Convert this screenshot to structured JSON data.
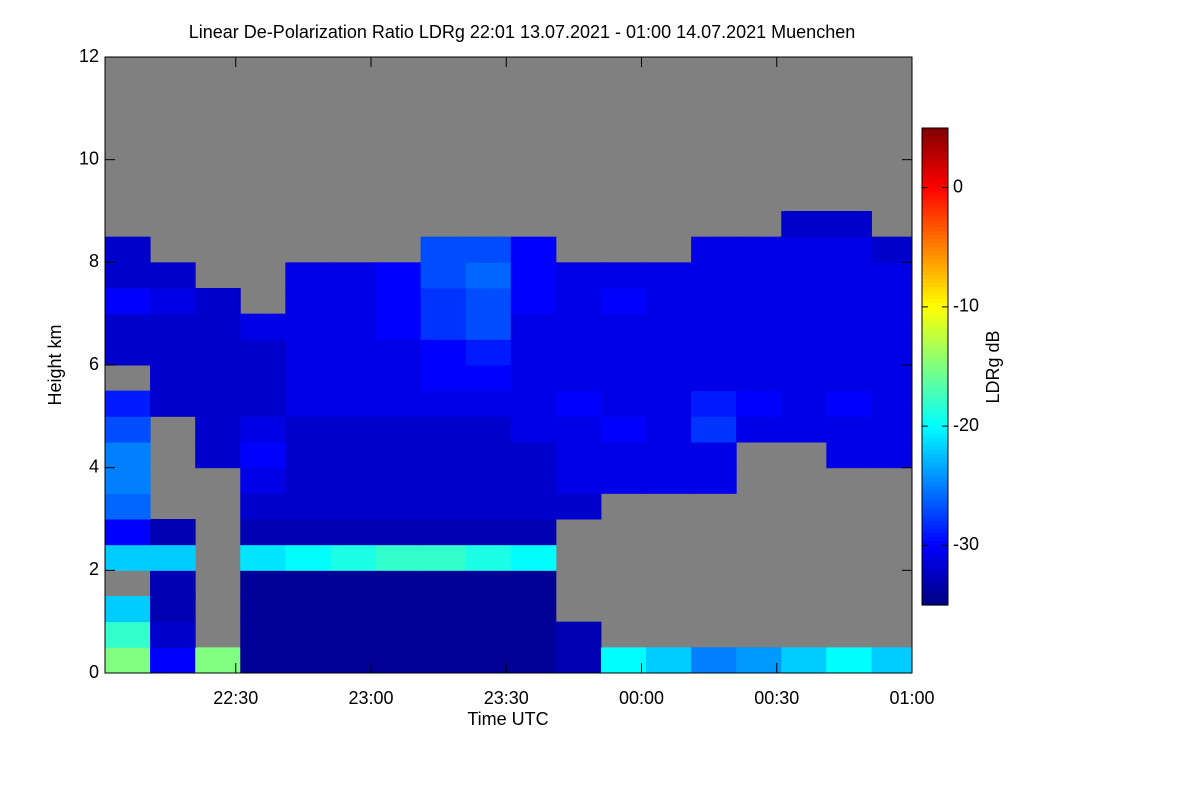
{
  "chart_data": {
    "type": "heatmap",
    "title": "Linear De-Polarization Ratio LDRg   22:01 13.07.2021 - 01:00 14.07.2021 Muenchen",
    "xlabel": "Time UTC",
    "ylabel": "Height km",
    "xlim": [
      1321,
      1500
    ],
    "ylim": [
      0,
      12
    ],
    "xticks": [
      {
        "value": 1350,
        "label": "22:30"
      },
      {
        "value": 1380,
        "label": "23:00"
      },
      {
        "value": 1410,
        "label": "23:30"
      },
      {
        "value": 1440,
        "label": "00:00"
      },
      {
        "value": 1470,
        "label": "00:30"
      },
      {
        "value": 1500,
        "label": "01:00"
      }
    ],
    "yticks": [
      0,
      2,
      4,
      6,
      8,
      10,
      12
    ],
    "x": [
      1326,
      1336,
      1346,
      1356,
      1366,
      1376,
      1386,
      1396,
      1406,
      1416,
      1426,
      1436,
      1446,
      1456,
      1466,
      1476,
      1486,
      1496
    ],
    "y": [
      0.25,
      0.75,
      1.25,
      1.75,
      2.25,
      2.75,
      3.25,
      3.75,
      4.25,
      4.75,
      5.25,
      5.75,
      6.25,
      6.75,
      7.25,
      7.75,
      8.25,
      8.75,
      9.25,
      9.75,
      10.25,
      10.75,
      11.25,
      11.75
    ],
    "values": [
      [
        -15,
        -30,
        -15,
        -34,
        -34,
        -34,
        -34,
        -34,
        -34,
        -34,
        -33,
        -20,
        -22,
        -25,
        -24,
        -22,
        -20,
        -22
      ],
      [
        -18,
        -32,
        null,
        -34,
        -34,
        -34,
        -34,
        -34,
        -34,
        -34,
        -33,
        null,
        null,
        null,
        null,
        null,
        null,
        null
      ],
      [
        -22,
        -33,
        null,
        -34,
        -34,
        -34,
        -34,
        -34,
        -34,
        -34,
        null,
        null,
        null,
        null,
        null,
        null,
        null,
        null
      ],
      [
        null,
        -33,
        null,
        -34,
        -34,
        -34,
        -34,
        -34,
        -34,
        -34,
        null,
        null,
        null,
        null,
        null,
        null,
        null,
        null
      ],
      [
        -22,
        -22,
        null,
        -21,
        -20,
        -19,
        -18,
        -18,
        -19,
        -20,
        null,
        null,
        null,
        null,
        null,
        null,
        null,
        null
      ],
      [
        -30,
        -33,
        null,
        -33,
        -33,
        -33,
        -33,
        -33,
        -33,
        -33,
        null,
        null,
        null,
        null,
        null,
        null,
        null,
        null
      ],
      [
        -26,
        null,
        null,
        -32,
        -32,
        -32,
        -32,
        -32,
        -32,
        -32,
        -32,
        null,
        null,
        null,
        null,
        null,
        null,
        null
      ],
      [
        -25,
        null,
        null,
        -31,
        -32,
        -32,
        -32,
        -32,
        -32,
        -32,
        -31,
        -31,
        -31,
        -31,
        null,
        null,
        null,
        null
      ],
      [
        -25,
        null,
        -32,
        -30,
        -32,
        -32,
        -32,
        -32,
        -32,
        -32,
        -31,
        -31,
        -31,
        -31,
        null,
        null,
        -31,
        -31
      ],
      [
        -27,
        null,
        -32,
        -31,
        -32,
        -32,
        -32,
        -32,
        -32,
        -31,
        -31,
        -30,
        -31,
        -28,
        -31,
        -31,
        -31,
        -31
      ],
      [
        -29,
        -32,
        -32,
        -32,
        -31,
        -31,
        -31,
        -31,
        -31,
        -31,
        -30,
        -31,
        -31,
        -29,
        -30,
        -31,
        -30,
        -31
      ],
      [
        null,
        -32,
        -32,
        -32,
        -31,
        -31,
        -31,
        -30,
        -30,
        -31,
        -31,
        -31,
        -31,
        -31,
        -31,
        -31,
        -31,
        -31
      ],
      [
        -32,
        -32,
        -32,
        -32,
        -31,
        -31,
        -31,
        -30,
        -29,
        -31,
        -31,
        -31,
        -31,
        -31,
        -31,
        -31,
        -31,
        -31
      ],
      [
        -32,
        -32,
        -32,
        -31,
        -31,
        -31,
        -30,
        -28,
        -27,
        -31,
        -31,
        -31,
        -31,
        -31,
        -31,
        -31,
        -31,
        -31
      ],
      [
        -30,
        -31,
        -32,
        null,
        -31,
        -31,
        -30,
        -28,
        -27,
        -30,
        -31,
        -30,
        -31,
        -31,
        -31,
        -31,
        -31,
        -31
      ],
      [
        -32,
        -32,
        null,
        null,
        -31,
        -31,
        -30,
        -27,
        -26,
        -30,
        -31,
        -31,
        -31,
        -31,
        -31,
        -31,
        -31,
        -31
      ],
      [
        -32,
        null,
        null,
        null,
        null,
        null,
        null,
        -27,
        -27,
        -30,
        null,
        null,
        null,
        -31,
        -31,
        -31,
        -31,
        -32
      ],
      [
        null,
        null,
        null,
        null,
        null,
        null,
        null,
        null,
        null,
        null,
        null,
        null,
        null,
        null,
        null,
        -32,
        -32,
        null
      ],
      [
        null,
        null,
        null,
        null,
        null,
        null,
        null,
        null,
        null,
        null,
        null,
        null,
        null,
        null,
        null,
        null,
        null,
        null
      ],
      [
        null,
        null,
        null,
        null,
        null,
        null,
        null,
        null,
        null,
        null,
        null,
        null,
        null,
        null,
        null,
        null,
        null,
        null
      ],
      [
        null,
        null,
        null,
        null,
        null,
        null,
        null,
        null,
        null,
        null,
        null,
        null,
        null,
        null,
        null,
        null,
        null,
        null
      ],
      [
        null,
        null,
        null,
        null,
        null,
        null,
        null,
        null,
        null,
        null,
        null,
        null,
        null,
        null,
        null,
        null,
        null,
        null
      ],
      [
        null,
        null,
        null,
        null,
        null,
        null,
        null,
        null,
        null,
        null,
        null,
        null,
        null,
        null,
        null,
        null,
        null,
        null
      ],
      [
        null,
        null,
        null,
        null,
        null,
        null,
        null,
        null,
        null,
        null,
        null,
        null,
        null,
        null,
        null,
        null,
        null,
        null
      ]
    ],
    "colormap": "jet",
    "missing_color": "#808080",
    "colorbar": {
      "label": "LDRg dB",
      "clim": [
        -35,
        5
      ],
      "ticks": [
        0,
        -10,
        -20,
        -30
      ]
    }
  }
}
